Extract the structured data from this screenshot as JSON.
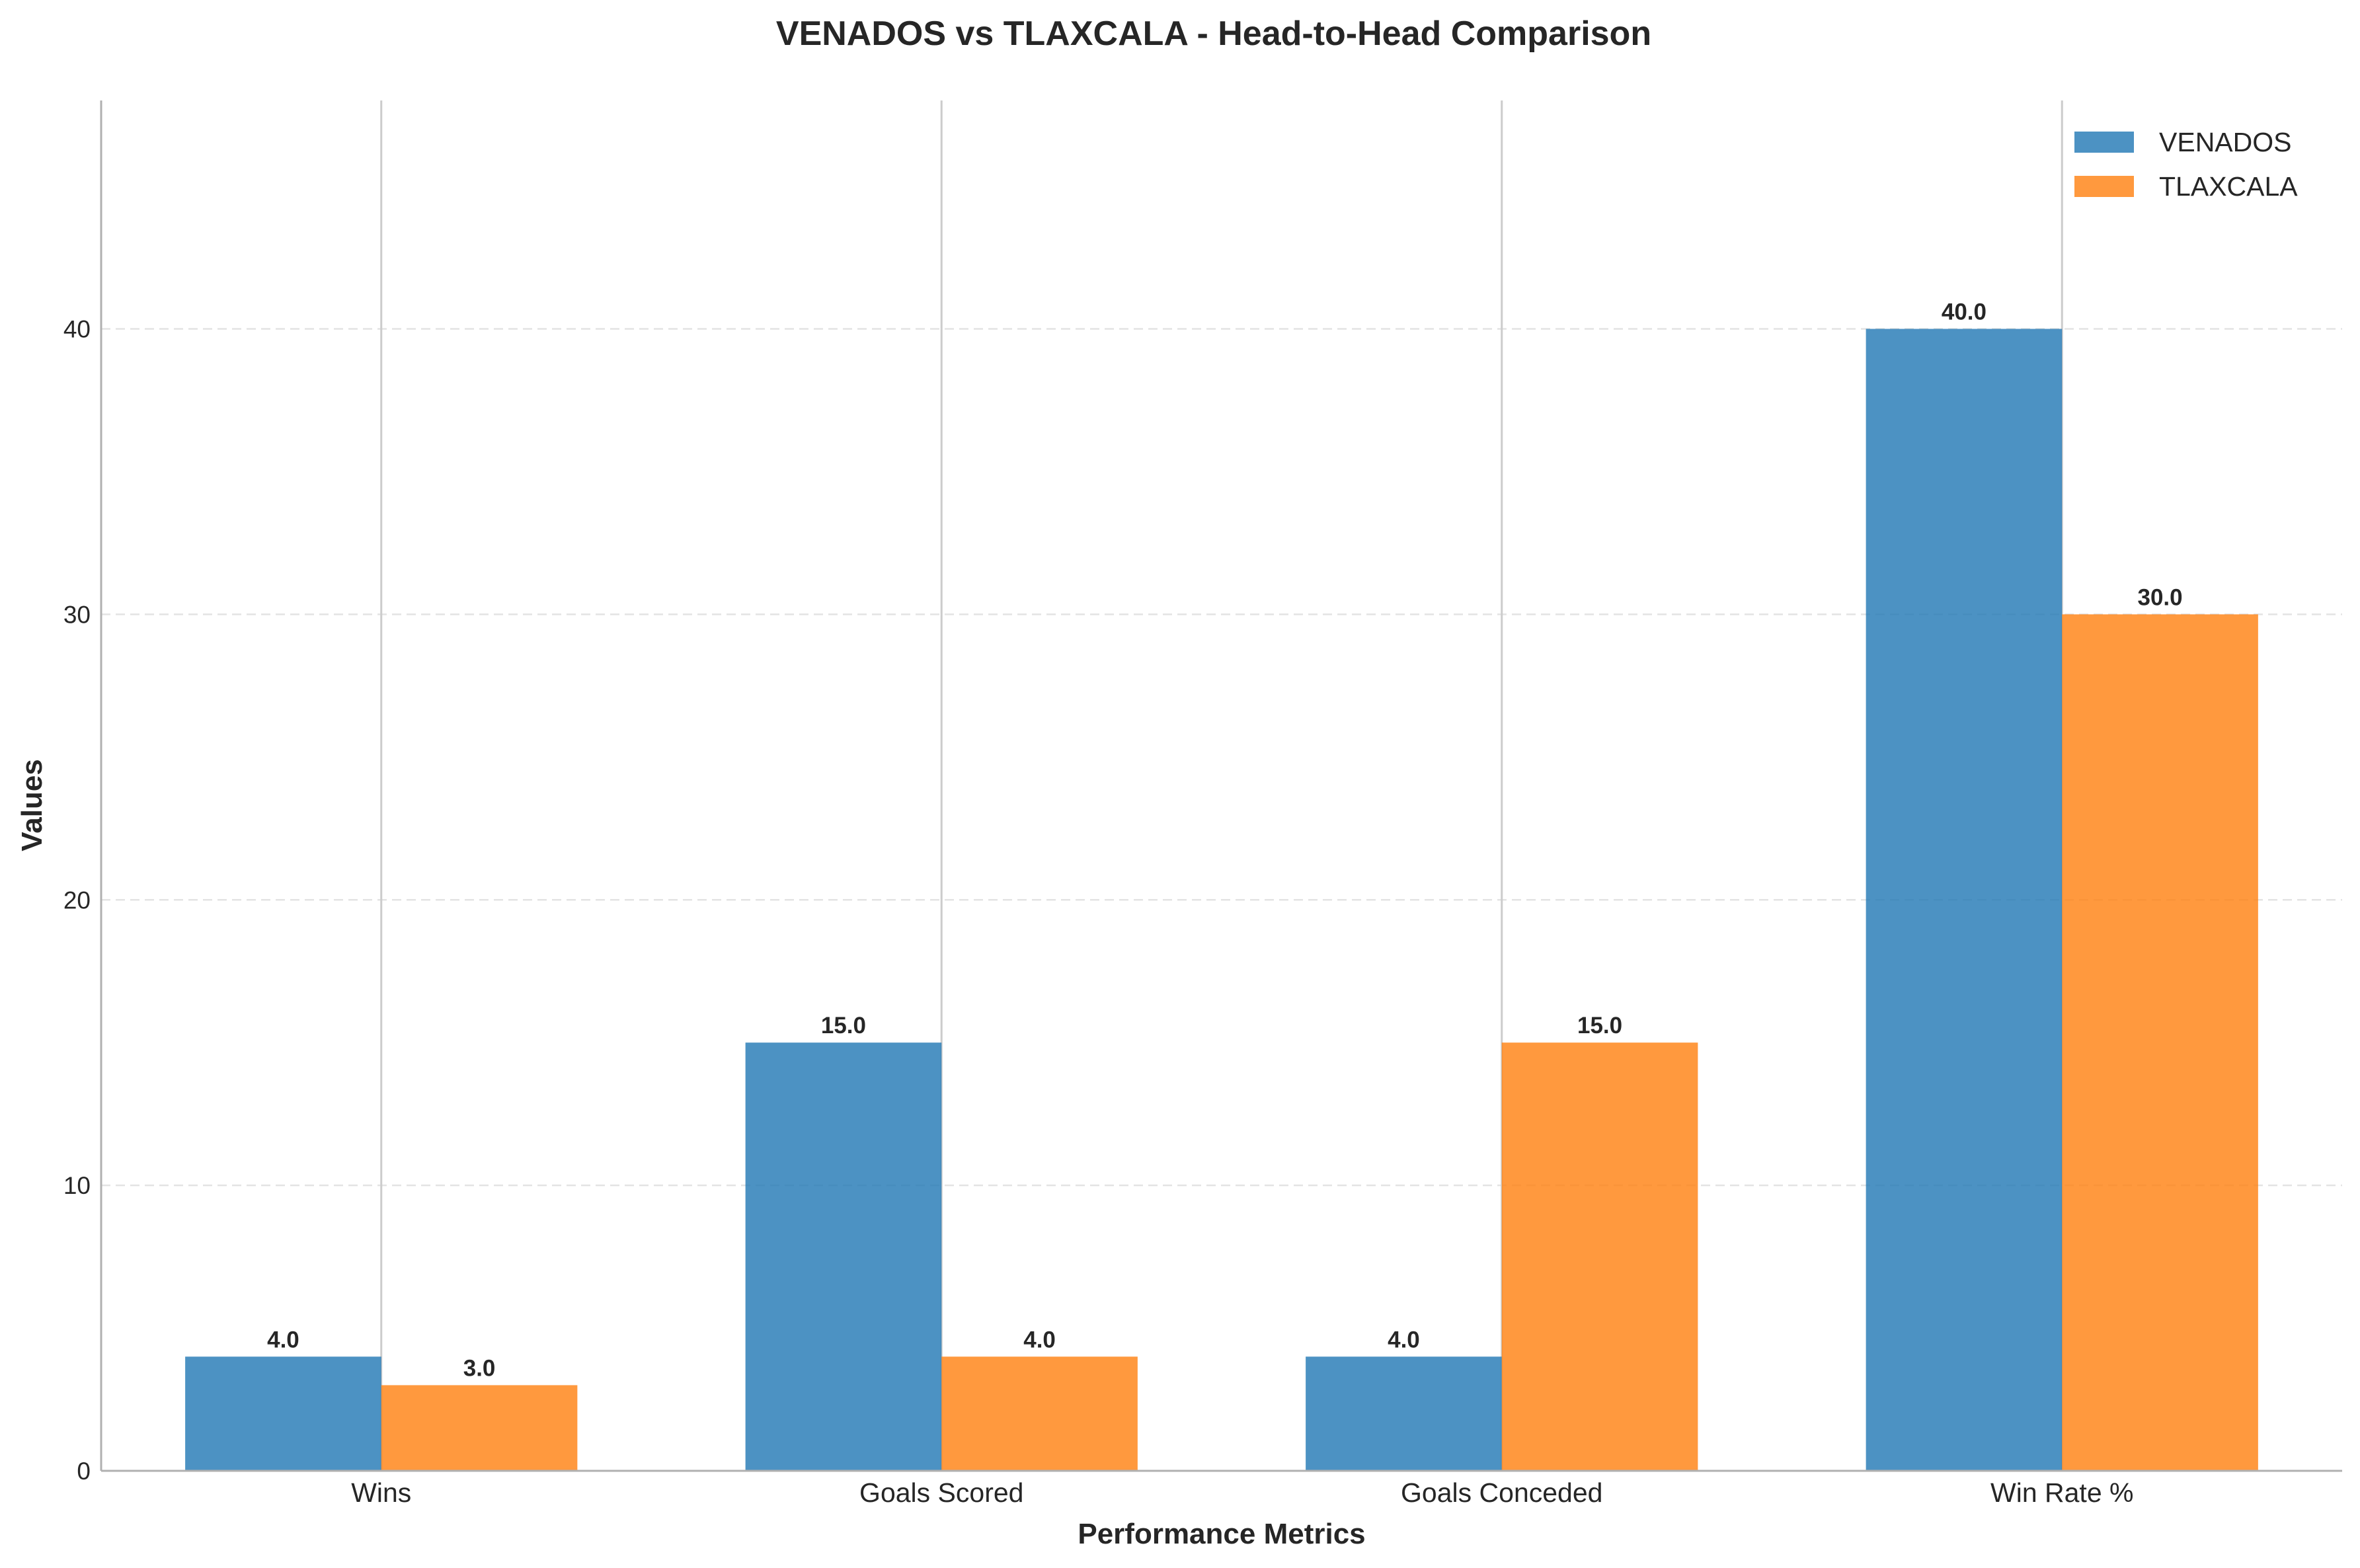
{
  "chart_data": {
    "type": "bar",
    "title": "VENADOS vs TLAXCALA - Head-to-Head Comparison",
    "xlabel": "Performance Metrics",
    "ylabel": "Values",
    "categories": [
      "Wins",
      "Goals Scored",
      "Goals Conceded",
      "Win Rate %"
    ],
    "series": [
      {
        "name": "VENADOS",
        "values": [
          4.0,
          15.0,
          4.0,
          40.0
        ],
        "color": "#1f77b4",
        "labels": [
          "4.0",
          "15.0",
          "4.0",
          "40.0"
        ]
      },
      {
        "name": "TLAXCALA",
        "values": [
          3.0,
          4.0,
          15.0,
          30.0
        ],
        "color": "#ff7f0e",
        "labels": [
          "3.0",
          "4.0",
          "15.0",
          "30.0"
        ]
      }
    ],
    "ylim": [
      0,
      48
    ],
    "yticks": [
      0,
      10,
      20,
      30,
      40
    ],
    "ytick_labels": [
      "0",
      "10",
      "20",
      "30",
      "40"
    ],
    "grid": "y-dashed",
    "legend_position": "top-right"
  }
}
